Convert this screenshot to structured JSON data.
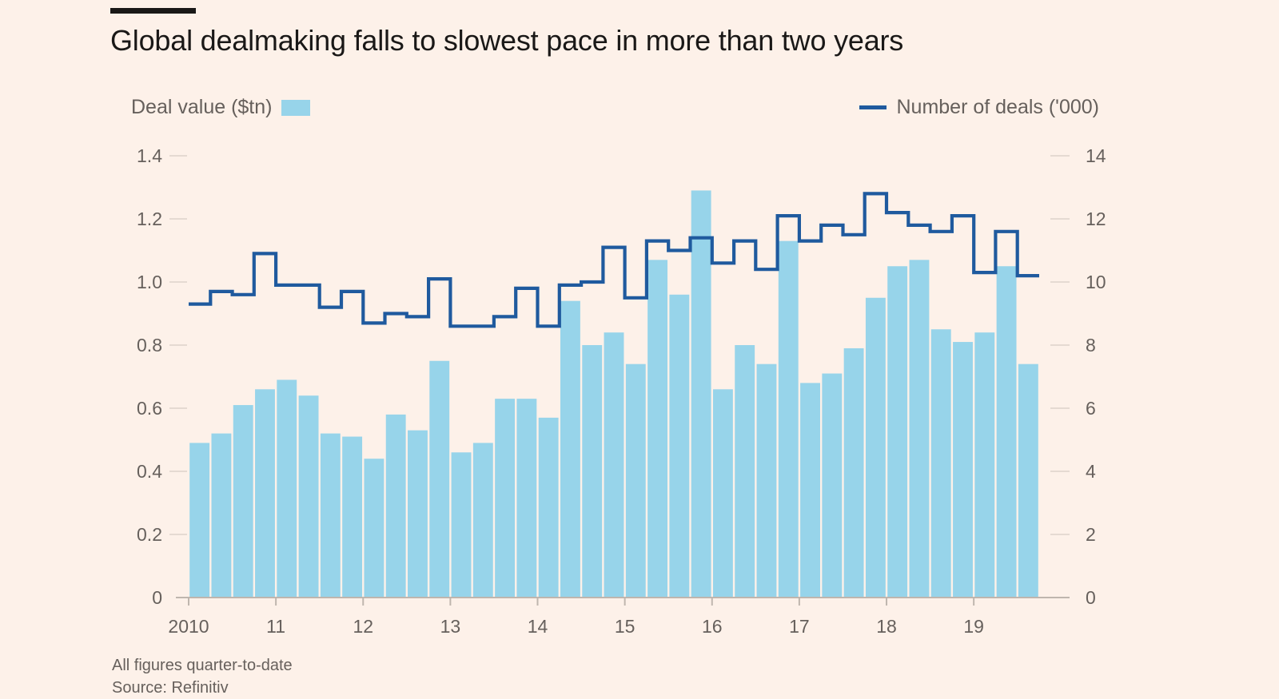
{
  "header": {
    "title": "Global dealmaking falls to slowest pace in more than two years"
  },
  "legend": {
    "bars_label": "Deal value ($tn)",
    "line_label": "Number of deals ('000)"
  },
  "footer": {
    "note": "All figures quarter-to-date",
    "source": "Source: Refinitiv"
  },
  "colors": {
    "background": "#fdf1e9",
    "bars": "#97d4ea",
    "line": "#1f5a9e",
    "text": "#66605c"
  },
  "chart_data": {
    "type": "bar",
    "title": "Global dealmaking falls to slowest pace in more than two years",
    "x_tick_labels": [
      "2010",
      "11",
      "12",
      "13",
      "14",
      "15",
      "16",
      "17",
      "18",
      "19"
    ],
    "x_tick_quarter_index": [
      0,
      4,
      8,
      12,
      16,
      20,
      24,
      28,
      32,
      36
    ],
    "y_left": {
      "ylim": [
        0,
        1.4
      ],
      "ticks": [
        "0",
        "0.2",
        "0.4",
        "0.6",
        "0.8",
        "1.0",
        "1.2",
        "1.4"
      ]
    },
    "y_right": {
      "ylim": [
        0,
        14
      ],
      "ticks": [
        "0",
        "2",
        "4",
        "6",
        "8",
        "10",
        "12",
        "14"
      ]
    },
    "grid": false,
    "series": [
      {
        "name": "Deal value ($tn)",
        "type": "bar",
        "axis": "left",
        "values": [
          0.49,
          0.52,
          0.61,
          0.66,
          0.69,
          0.64,
          0.52,
          0.51,
          0.44,
          0.58,
          0.53,
          0.75,
          0.46,
          0.49,
          0.63,
          0.63,
          0.57,
          0.94,
          0.8,
          0.84,
          0.74,
          1.07,
          0.96,
          1.29,
          0.66,
          0.8,
          0.74,
          1.13,
          0.68,
          0.71,
          0.79,
          0.95,
          1.05,
          1.07,
          0.85,
          0.81,
          0.84,
          1.05,
          0.74
        ]
      },
      {
        "name": "Number of deals ('000)",
        "type": "step-line",
        "axis": "right",
        "values": [
          9.3,
          9.7,
          9.6,
          10.9,
          9.9,
          9.9,
          9.2,
          9.7,
          8.7,
          9.0,
          8.9,
          10.1,
          8.6,
          8.6,
          8.9,
          9.8,
          8.6,
          9.9,
          10.0,
          11.1,
          9.5,
          11.3,
          11.0,
          11.4,
          10.6,
          11.3,
          10.4,
          12.1,
          11.3,
          11.8,
          11.5,
          12.8,
          12.2,
          11.8,
          11.6,
          12.1,
          10.3,
          11.6,
          10.2
        ]
      }
    ]
  }
}
